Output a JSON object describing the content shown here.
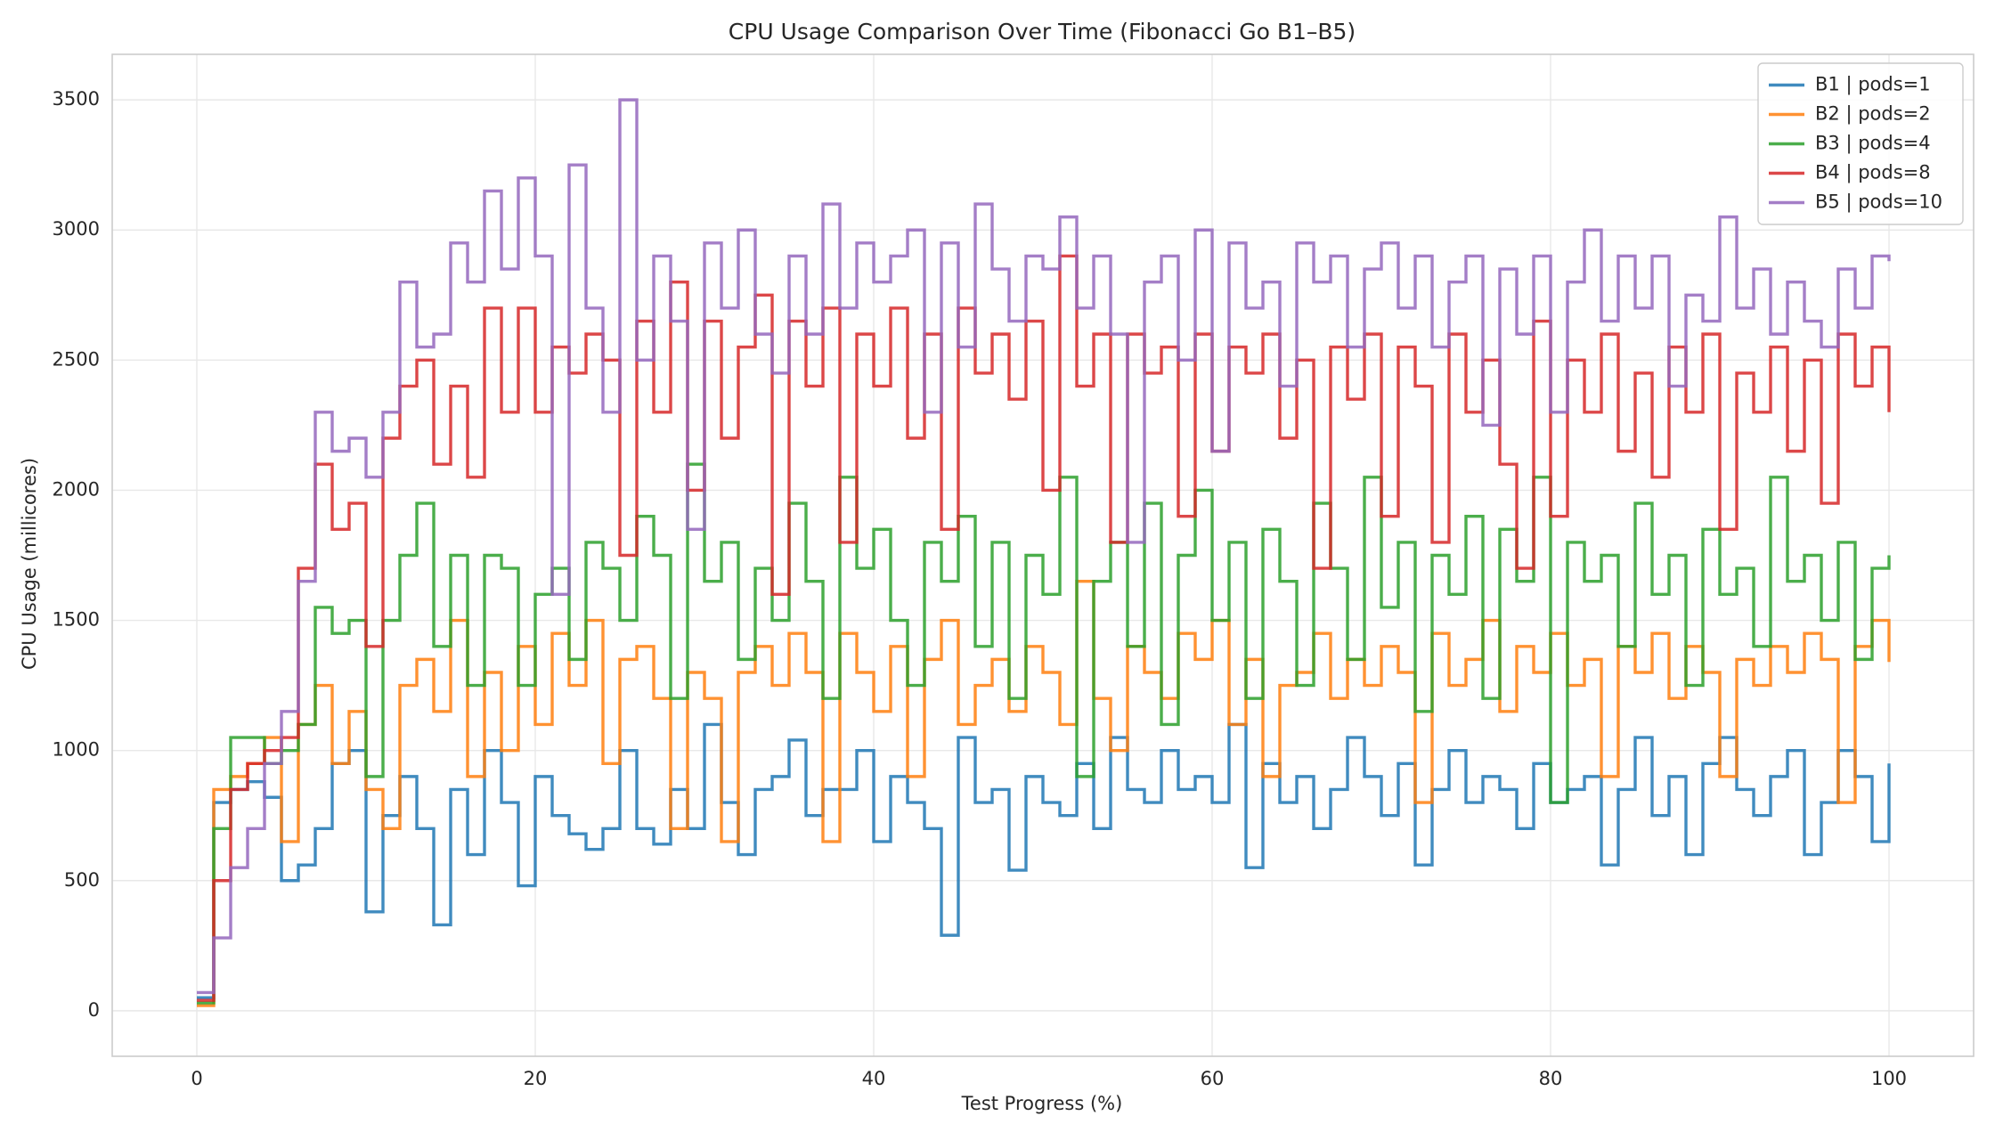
{
  "chart_data": {
    "type": "line",
    "drawstyle": "steps-post",
    "title": "CPU Usage Comparison Over Time (Fibonacci Go B1–B5)",
    "x_label": "Test Progress (%)",
    "y_label": "CPU Usage (millicores)",
    "x": [
      0,
      1,
      2,
      3,
      4,
      5,
      6,
      7,
      8,
      9,
      10,
      11,
      12,
      13,
      14,
      15,
      16,
      17,
      18,
      19,
      20,
      21,
      22,
      23,
      24,
      25,
      26,
      27,
      28,
      29,
      30,
      31,
      32,
      33,
      34,
      35,
      36,
      37,
      38,
      39,
      40,
      41,
      42,
      43,
      44,
      45,
      46,
      47,
      48,
      49,
      50,
      51,
      52,
      53,
      54,
      55,
      56,
      57,
      58,
      59,
      60,
      61,
      62,
      63,
      64,
      65,
      66,
      67,
      68,
      69,
      70,
      71,
      72,
      73,
      74,
      75,
      76,
      77,
      78,
      79,
      80,
      81,
      82,
      83,
      84,
      85,
      86,
      87,
      88,
      89,
      90,
      91,
      92,
      93,
      94,
      95,
      96,
      97,
      98,
      99,
      100
    ],
    "series": [
      {
        "name": "B1 | pods=1",
        "color": "#1f77b4",
        "values": [
          50,
          800,
          850,
          880,
          820,
          500,
          560,
          700,
          950,
          1000,
          380,
          750,
          900,
          700,
          330,
          850,
          600,
          1000,
          800,
          480,
          900,
          750,
          680,
          620,
          700,
          1000,
          700,
          640,
          850,
          700,
          1100,
          800,
          600,
          850,
          900,
          1040,
          750,
          850,
          850,
          1000,
          650,
          900,
          800,
          700,
          290,
          1050,
          800,
          850,
          540,
          900,
          800,
          750,
          950,
          700,
          1050,
          850,
          800,
          1000,
          850,
          900,
          800,
          1100,
          550,
          950,
          800,
          900,
          700,
          850,
          1050,
          900,
          750,
          950,
          560,
          850,
          1000,
          800,
          900,
          850,
          700,
          950,
          800,
          850,
          900,
          560,
          850,
          1050,
          750,
          900,
          600,
          950,
          1050,
          850,
          750,
          900,
          1000,
          600,
          800,
          1000,
          900,
          650,
          950
        ]
      },
      {
        "name": "B2 | pods=2",
        "color": "#ff7f0e",
        "values": [
          20,
          850,
          900,
          950,
          1050,
          650,
          1100,
          1250,
          950,
          1150,
          850,
          700,
          1250,
          1350,
          1150,
          1500,
          900,
          1300,
          1000,
          1400,
          1100,
          1450,
          1250,
          1500,
          950,
          1350,
          1400,
          1200,
          700,
          1300,
          1200,
          650,
          1300,
          1400,
          1250,
          1450,
          1300,
          650,
          1450,
          1300,
          1150,
          1400,
          900,
          1350,
          1500,
          1100,
          1250,
          1350,
          1150,
          1400,
          1300,
          1100,
          1650,
          1200,
          1000,
          1400,
          1300,
          1200,
          1450,
          1350,
          1500,
          1100,
          1350,
          900,
          1250,
          1300,
          1450,
          1200,
          1350,
          1250,
          1400,
          1300,
          800,
          1450,
          1250,
          1350,
          1500,
          1150,
          1400,
          1300,
          1450,
          1250,
          1350,
          900,
          1400,
          1300,
          1450,
          1200,
          1400,
          1300,
          900,
          1350,
          1250,
          1400,
          1300,
          1450,
          1350,
          800,
          1400,
          1500,
          1340
        ]
      },
      {
        "name": "B3 | pods=4",
        "color": "#2ca02c",
        "values": [
          30,
          700,
          1050,
          1050,
          950,
          1000,
          1100,
          1550,
          1450,
          1500,
          900,
          1500,
          1750,
          1950,
          1400,
          1750,
          1250,
          1750,
          1700,
          1250,
          1600,
          1700,
          1350,
          1800,
          1700,
          1500,
          1900,
          1750,
          1200,
          2100,
          1650,
          1800,
          1350,
          1700,
          1500,
          1950,
          1650,
          1200,
          2050,
          1700,
          1850,
          1500,
          1250,
          1800,
          1650,
          1900,
          1400,
          1800,
          1200,
          1750,
          1600,
          2050,
          900,
          1650,
          1800,
          1400,
          1950,
          1100,
          1750,
          2000,
          1500,
          1800,
          1200,
          1850,
          1650,
          1250,
          1950,
          1700,
          1350,
          2050,
          1550,
          1800,
          1150,
          1750,
          1600,
          1900,
          1200,
          1850,
          1650,
          2050,
          800,
          1800,
          1650,
          1750,
          1400,
          1950,
          1600,
          1750,
          1250,
          1850,
          1600,
          1700,
          1400,
          2050,
          1650,
          1750,
          1500,
          1800,
          1350,
          1700,
          1750
        ]
      },
      {
        "name": "B4 | pods=8",
        "color": "#d62728",
        "values": [
          40,
          500,
          850,
          950,
          1000,
          1050,
          1700,
          2100,
          1850,
          1950,
          1400,
          2200,
          2400,
          2500,
          2100,
          2400,
          2050,
          2700,
          2300,
          2700,
          2300,
          2550,
          2450,
          2600,
          2500,
          1750,
          2650,
          2300,
          2800,
          2000,
          2650,
          2200,
          2550,
          2750,
          1600,
          2650,
          2400,
          2700,
          1800,
          2600,
          2400,
          2700,
          2200,
          2600,
          1850,
          2700,
          2450,
          2600,
          2350,
          2650,
          2000,
          2900,
          2400,
          2600,
          1800,
          2600,
          2450,
          2550,
          1900,
          2600,
          2150,
          2550,
          2450,
          2600,
          2200,
          2500,
          1700,
          2550,
          2350,
          2600,
          1900,
          2550,
          2400,
          1800,
          2600,
          2300,
          2500,
          2100,
          1700,
          2650,
          1900,
          2500,
          2300,
          2600,
          2150,
          2450,
          2050,
          2550,
          2300,
          2600,
          1850,
          2450,
          2300,
          2550,
          2150,
          2500,
          1950,
          2600,
          2400,
          2550,
          2300
        ]
      },
      {
        "name": "B5 | pods=10",
        "color": "#9467bd",
        "values": [
          70,
          280,
          550,
          700,
          950,
          1150,
          1650,
          2300,
          2150,
          2200,
          2050,
          2300,
          2800,
          2550,
          2600,
          2950,
          2800,
          3150,
          2850,
          3200,
          2900,
          1600,
          3250,
          2700,
          2300,
          3500,
          2500,
          2900,
          2650,
          1850,
          2950,
          2700,
          3000,
          2600,
          2450,
          2900,
          2600,
          3100,
          2700,
          2950,
          2800,
          2900,
          3000,
          2300,
          2950,
          2550,
          3100,
          2850,
          2650,
          2900,
          2850,
          3050,
          2700,
          2900,
          2600,
          1800,
          2800,
          2900,
          2500,
          3000,
          2150,
          2950,
          2700,
          2800,
          2400,
          2950,
          2800,
          2900,
          2550,
          2850,
          2950,
          2700,
          2900,
          2550,
          2800,
          2900,
          2250,
          2850,
          2600,
          2900,
          2300,
          2800,
          3000,
          2650,
          2900,
          2700,
          2900,
          2400,
          2750,
          2650,
          3050,
          2700,
          2850,
          2600,
          2800,
          2650,
          2550,
          2850,
          2700,
          2900,
          2880
        ]
      }
    ],
    "xlim": [
      -5,
      105
    ],
    "xticks": [
      0,
      20,
      40,
      60,
      80,
      100
    ],
    "ylim": [
      -175,
      3675
    ],
    "yticks": [
      0,
      500,
      1000,
      1500,
      2000,
      2500,
      3000,
      3500
    ],
    "grid": true,
    "legend": "upper right"
  }
}
